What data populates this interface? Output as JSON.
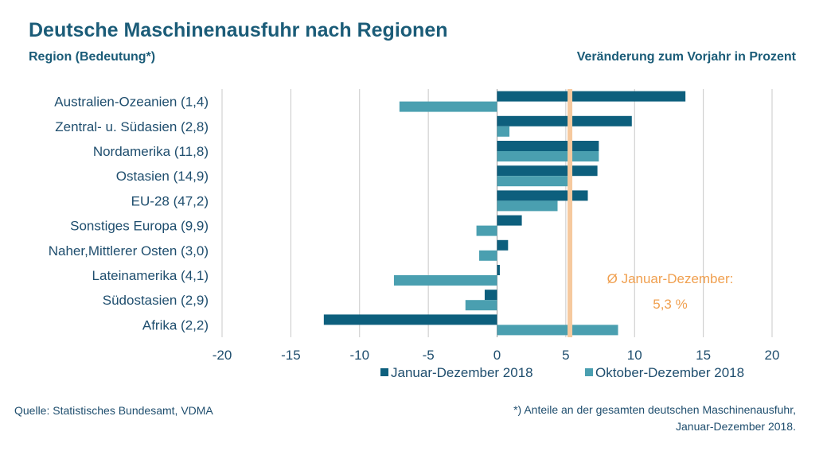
{
  "header": {
    "title": "Deutsche Maschinenausfuhr nach Regionen",
    "subtitle_left": "Region (Bedeutung*)",
    "subtitle_right": "Veränderung zum Vorjahr in Prozent"
  },
  "footer": {
    "source": "Quelle: Statistisches Bundesamt, VDMA",
    "footnote_line1": "*) Anteile an der gesamten deutschen Maschinenausfuhr,",
    "footnote_line2": "Januar-Dezember 2018."
  },
  "colors": {
    "series1": "#0d5f7d",
    "series2": "#4a9fb0",
    "avg_line": "#f6c99e",
    "avg_text": "#f0a050",
    "grid": "#c8c8c8",
    "axis_text": "#1f4e6e"
  },
  "chart_data": {
    "type": "bar",
    "orientation": "horizontal",
    "categories": [
      "Australien-Ozeanien (1,4)",
      "Zentral- u. Südasien (2,8)",
      "Nordamerika (11,8)",
      "Ostasien (14,9)",
      "EU-28 (47,2)",
      "Sonstiges Europa (9,9)",
      "Naher,Mittlerer Osten (3,0)",
      "Lateinamerika (4,1)",
      "Südostasien (2,9)",
      "Afrika (2,2)"
    ],
    "series": [
      {
        "name": "Januar-Dezember 2018",
        "values": [
          13.7,
          9.8,
          7.4,
          7.3,
          6.6,
          1.8,
          0.8,
          0.2,
          -0.9,
          -12.6
        ]
      },
      {
        "name": "Oktober-Dezember 2018",
        "values": [
          -7.1,
          0.9,
          7.4,
          5.4,
          4.4,
          -1.5,
          -1.3,
          -7.5,
          -2.3,
          8.8
        ]
      }
    ],
    "xlim": [
      -20,
      20
    ],
    "xticks": [
      -20,
      -15,
      -10,
      -5,
      0,
      5,
      10,
      15,
      20
    ],
    "grid": true,
    "legend_position": "bottom",
    "average": {
      "value": 5.3,
      "label_line1": "Ø Januar-Dezember:",
      "label_line2": "5,3 %"
    }
  }
}
